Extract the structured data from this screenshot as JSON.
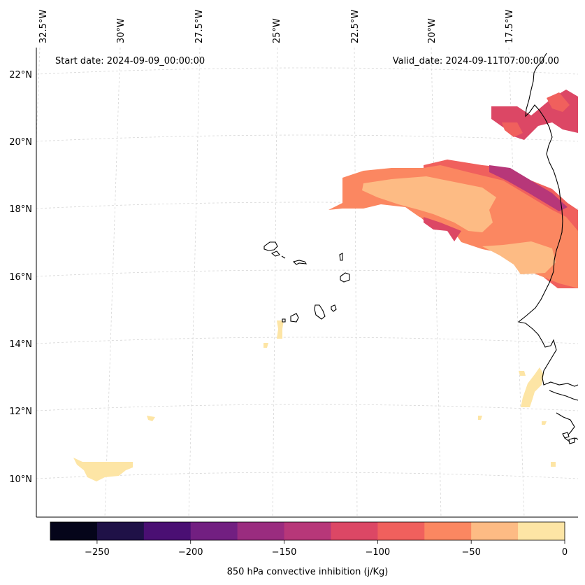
{
  "header": {
    "start_date": "Start date: 2024-09-09_00:00:00",
    "valid_date": "Valid_date: 2024-09-11T07:00:00.00"
  },
  "map": {
    "longitude_labels": [
      "32.5°W",
      "30°W",
      "27.5°W",
      "25°W",
      "22.5°W",
      "20°W",
      "17.5°W"
    ],
    "latitude_labels": [
      "22°N",
      "20°N",
      "18°N",
      "16°N",
      "14°N",
      "12°N",
      "10°N"
    ],
    "field_description": "850 hPa convective inhibition"
  },
  "colorbar": {
    "label": "850 hPa convective inhibition (j/Kg)",
    "tick_labels": [
      "−250",
      "−200",
      "−150",
      "−100",
      "−50",
      "0"
    ],
    "levels": [
      -275,
      -250,
      -225,
      -200,
      -175,
      -150,
      -125,
      -100,
      -75,
      -50,
      -25,
      0
    ],
    "colors": [
      "#05051a",
      "#1f1147",
      "#4a0f73",
      "#721f81",
      "#9a2c7f",
      "#b73779",
      "#dc4765",
      "#f0605d",
      "#fb8761",
      "#fdbb84",
      "#fde5a5"
    ]
  },
  "colors": {
    "coastline": "#000000",
    "gridline": "#cccccc",
    "frame": "#000000"
  }
}
